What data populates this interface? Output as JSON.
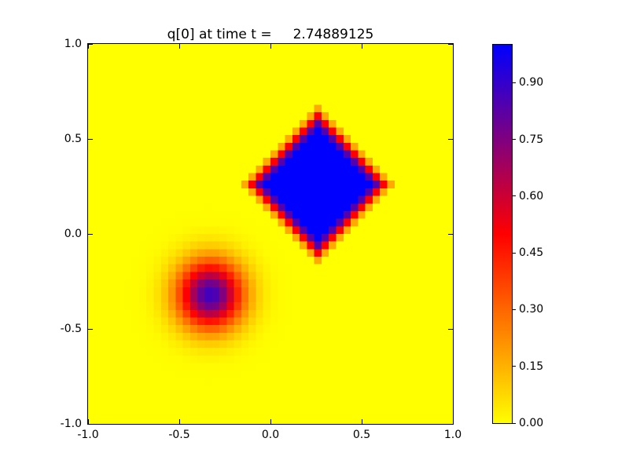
{
  "title": {
    "text": "q[0] at time t =     2.74889125"
  },
  "axes": {
    "xtick_labels": [
      "-1.0",
      "-0.5",
      "0.0",
      "0.5",
      "1.0"
    ],
    "ytick_labels": [
      "-1.0",
      "-0.5",
      "0.0",
      "0.5",
      "1.0"
    ]
  },
  "colorbar": {
    "tick_labels": [
      "0.00",
      "0.15",
      "0.30",
      "0.45",
      "0.60",
      "0.75",
      "0.90"
    ]
  },
  "chart_data": {
    "type": "heatmap",
    "title": "q[0] at time t =     2.74889125",
    "xlim": [
      -1,
      1
    ],
    "ylim": [
      -1,
      1
    ],
    "clim": [
      0,
      1
    ],
    "xticks": [
      -1.0,
      -0.5,
      0.0,
      0.5,
      1.0
    ],
    "yticks": [
      -1.0,
      -0.5,
      0.0,
      0.5,
      1.0
    ],
    "colorbar_ticks": [
      0.0,
      0.15,
      0.3,
      0.45,
      0.6,
      0.75,
      0.9
    ],
    "grid": {
      "nx": 50,
      "ny": 50
    },
    "background_value": 0.0,
    "colormap": {
      "name": "yellow-red-blue",
      "stops": [
        {
          "v": 0.0,
          "rgb": [
            255,
            255,
            0
          ]
        },
        {
          "v": 0.5,
          "rgb": [
            255,
            0,
            0
          ]
        },
        {
          "v": 1.0,
          "rgb": [
            0,
            0,
            255
          ]
        }
      ]
    },
    "features": [
      {
        "kind": "diamond",
        "description": "smoothed square pulse rotated 45 degrees, peak value 1 (blue core, red fringe)",
        "center": [
          0.26,
          0.26
        ],
        "inner_l1_radius": 0.3,
        "outer_l1_radius": 0.42,
        "peak": 1.0
      },
      {
        "kind": "gaussian",
        "description": "gaussian hump, violet core fading through red/orange to yellow",
        "center": [
          -0.33,
          -0.32
        ],
        "sigma": 0.125,
        "amplitude": 0.88
      }
    ],
    "legend": "none",
    "gridlines": false
  }
}
